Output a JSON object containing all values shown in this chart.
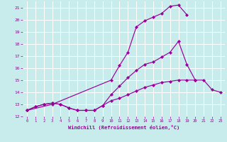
{
  "xlabel": "Windchill (Refroidissement éolien,°C)",
  "bg_color": "#c8ecec",
  "grid_color": "#ffffff",
  "line_color": "#990099",
  "xlim": [
    -0.5,
    23.5
  ],
  "ylim": [
    12,
    21.5
  ],
  "xticks": [
    0,
    1,
    2,
    3,
    4,
    5,
    6,
    7,
    8,
    9,
    10,
    11,
    12,
    13,
    14,
    15,
    16,
    17,
    18,
    19,
    20,
    21,
    22,
    23
  ],
  "yticks": [
    12,
    13,
    14,
    15,
    16,
    17,
    18,
    19,
    20,
    21
  ],
  "line1_x": [
    0,
    1,
    2,
    3,
    4,
    5,
    6,
    7,
    8,
    9,
    10,
    11,
    12,
    13,
    14,
    15,
    16,
    17,
    18,
    19,
    20,
    21,
    22,
    23
  ],
  "line1_y": [
    12.5,
    12.8,
    13.0,
    13.1,
    13.0,
    12.7,
    12.5,
    12.5,
    12.5,
    12.9,
    13.3,
    13.5,
    13.8,
    14.1,
    14.4,
    14.6,
    14.8,
    14.9,
    15.0,
    15.0,
    15.0,
    15.0,
    14.2,
    14.0
  ],
  "line2_x": [
    0,
    1,
    2,
    3,
    4,
    5,
    6,
    7,
    8,
    9,
    10,
    11,
    12,
    13,
    14,
    15,
    16,
    17,
    18,
    19,
    20
  ],
  "line2_y": [
    12.5,
    12.8,
    13.0,
    13.1,
    13.0,
    12.7,
    12.5,
    12.5,
    12.5,
    12.9,
    13.8,
    14.5,
    15.2,
    15.8,
    16.3,
    16.5,
    16.9,
    17.3,
    18.2,
    16.3,
    15.0
  ],
  "line3_x": [
    0,
    3,
    10,
    11,
    12,
    13,
    14,
    15,
    16,
    17,
    18,
    19
  ],
  "line3_y": [
    12.5,
    13.0,
    15.0,
    16.2,
    17.3,
    19.4,
    19.9,
    20.2,
    20.5,
    21.1,
    21.2,
    20.4
  ]
}
